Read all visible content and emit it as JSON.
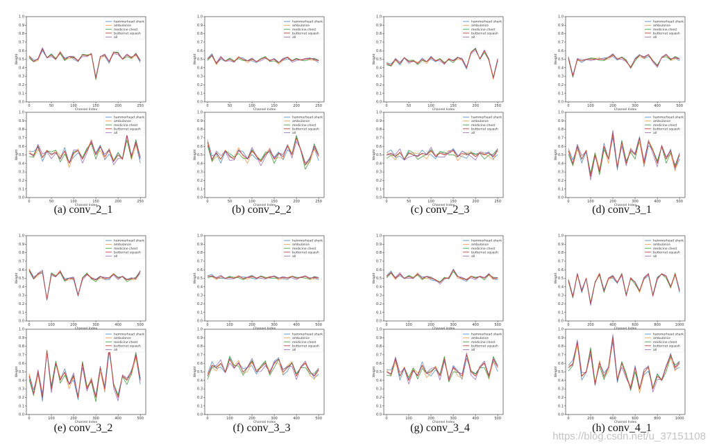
{
  "legend": [
    "hammerhead shark",
    "ambulance",
    "medicine chest",
    "butternut squash",
    "all"
  ],
  "series_colors": [
    "#4f8fc9",
    "#f0a050",
    "#3fa03f",
    "#c83c3c",
    "#9a70c0"
  ],
  "axis": {
    "xlabel": "Channel Index",
    "ylabel": "Weight",
    "yticks": [
      "0.0",
      "0.1",
      "0.2",
      "0.3",
      "0.4",
      "0.5",
      "0.6",
      "0.7",
      "0.8",
      "0.9",
      "1.0"
    ],
    "ylim": [
      0,
      1
    ]
  },
  "panels": [
    {
      "caption": "(a) conv_2_1",
      "xticks": [
        "0",
        "50",
        "100",
        "150",
        "200",
        "250"
      ],
      "xmax": 256
    },
    {
      "caption": "(b) conv_2_2",
      "xticks": [
        "0",
        "50",
        "100",
        "150",
        "200",
        "250"
      ],
      "xmax": 256
    },
    {
      "caption": "(c) conv_2_3",
      "xticks": [
        "0",
        "50",
        "100",
        "150",
        "200",
        "250"
      ],
      "xmax": 256
    },
    {
      "caption": "(d) conv_3_1",
      "xticks": [
        "0",
        "100",
        "200",
        "300",
        "400",
        "500"
      ],
      "xmax": 512
    },
    {
      "caption": "(e) conv_3_2",
      "xticks": [
        "0",
        "100",
        "200",
        "300",
        "400",
        "500"
      ],
      "xmax": 512
    },
    {
      "caption": "(f) conv_3_3",
      "xticks": [
        "0",
        "100",
        "200",
        "300",
        "400",
        "500"
      ],
      "xmax": 512
    },
    {
      "caption": "(g) conv_3_4",
      "xticks": [
        "0",
        "100",
        "200",
        "300",
        "400",
        "500"
      ],
      "xmax": 512
    },
    {
      "caption": "(h) conv_4_1",
      "xticks": [
        "0",
        "200",
        "400",
        "600",
        "800",
        "1000"
      ],
      "xmax": 1024
    }
  ],
  "chart_data": [
    {
      "type": "line",
      "panel": "a",
      "subplot": "top",
      "x": [
        0,
        10,
        20,
        30,
        40,
        50,
        60,
        70,
        80,
        90,
        100,
        110,
        120,
        130,
        140,
        150,
        160,
        170,
        180,
        190,
        200,
        210,
        220,
        230,
        240,
        250
      ],
      "series": [
        {
          "name": "all",
          "values": [
            0.53,
            0.48,
            0.5,
            0.62,
            0.52,
            0.55,
            0.5,
            0.58,
            0.5,
            0.53,
            0.52,
            0.48,
            0.55,
            0.54,
            0.56,
            0.28,
            0.53,
            0.55,
            0.47,
            0.58,
            0.57,
            0.5,
            0.55,
            0.52,
            0.56,
            0.48
          ]
        }
      ]
    },
    {
      "type": "line",
      "panel": "a",
      "subplot": "bottom",
      "x": [
        0,
        10,
        20,
        30,
        40,
        50,
        60,
        70,
        80,
        90,
        100,
        110,
        120,
        130,
        140,
        150,
        160,
        170,
        180,
        190,
        200,
        210,
        220,
        230,
        240,
        250
      ],
      "series": [
        {
          "name": "all",
          "values": [
            0.52,
            0.5,
            0.6,
            0.47,
            0.55,
            0.5,
            0.53,
            0.45,
            0.55,
            0.4,
            0.52,
            0.55,
            0.45,
            0.55,
            0.65,
            0.5,
            0.6,
            0.48,
            0.55,
            0.42,
            0.5,
            0.45,
            0.72,
            0.48,
            0.65,
            0.45
          ]
        }
      ]
    },
    {
      "type": "line",
      "panel": "b",
      "subplot": "top",
      "x": [
        0,
        10,
        20,
        30,
        40,
        50,
        60,
        70,
        80,
        90,
        100,
        110,
        120,
        130,
        140,
        150,
        160,
        170,
        180,
        190,
        200,
        210,
        220,
        230,
        240,
        250
      ],
      "series": [
        {
          "name": "all",
          "values": [
            0.5,
            0.55,
            0.45,
            0.52,
            0.48,
            0.5,
            0.47,
            0.52,
            0.5,
            0.48,
            0.5,
            0.47,
            0.5,
            0.52,
            0.48,
            0.5,
            0.46,
            0.5,
            0.52,
            0.48,
            0.5,
            0.49,
            0.5,
            0.51,
            0.5,
            0.48
          ]
        }
      ]
    },
    {
      "type": "line",
      "panel": "b",
      "subplot": "bottom",
      "x": [
        0,
        10,
        20,
        30,
        40,
        50,
        60,
        70,
        80,
        90,
        100,
        110,
        120,
        130,
        140,
        150,
        160,
        170,
        180,
        190,
        200,
        210,
        220,
        230,
        240,
        250
      ],
      "series": [
        {
          "name": "all",
          "values": [
            0.65,
            0.45,
            0.52,
            0.45,
            0.55,
            0.48,
            0.45,
            0.55,
            0.5,
            0.45,
            0.55,
            0.48,
            0.42,
            0.5,
            0.55,
            0.45,
            0.52,
            0.48,
            0.6,
            0.5,
            0.7,
            0.55,
            0.38,
            0.45,
            0.6,
            0.48
          ]
        }
      ]
    },
    {
      "type": "line",
      "panel": "c",
      "subplot": "top",
      "x": [
        0,
        10,
        20,
        30,
        40,
        50,
        60,
        70,
        80,
        90,
        100,
        110,
        120,
        130,
        140,
        150,
        160,
        170,
        180,
        190,
        200,
        210,
        220,
        230,
        240,
        250
      ],
      "series": [
        {
          "name": "all",
          "values": [
            0.45,
            0.43,
            0.5,
            0.45,
            0.52,
            0.47,
            0.48,
            0.45,
            0.5,
            0.47,
            0.52,
            0.48,
            0.5,
            0.45,
            0.5,
            0.48,
            0.52,
            0.5,
            0.4,
            0.58,
            0.62,
            0.5,
            0.6,
            0.5,
            0.28,
            0.5
          ]
        }
      ]
    },
    {
      "type": "line",
      "panel": "c",
      "subplot": "bottom",
      "x": [
        0,
        10,
        20,
        30,
        40,
        50,
        60,
        70,
        80,
        90,
        100,
        110,
        120,
        130,
        140,
        150,
        160,
        170,
        180,
        190,
        200,
        210,
        220,
        230,
        240,
        250
      ],
      "series": [
        {
          "name": "all",
          "values": [
            0.5,
            0.52,
            0.48,
            0.53,
            0.45,
            0.52,
            0.5,
            0.48,
            0.52,
            0.5,
            0.55,
            0.48,
            0.52,
            0.5,
            0.52,
            0.55,
            0.48,
            0.52,
            0.5,
            0.52,
            0.48,
            0.52,
            0.5,
            0.52,
            0.48,
            0.55
          ]
        }
      ]
    },
    {
      "type": "line",
      "panel": "d",
      "subplot": "top",
      "x": [
        0,
        20,
        40,
        60,
        80,
        100,
        120,
        140,
        160,
        180,
        200,
        220,
        240,
        260,
        280,
        300,
        320,
        340,
        360,
        380,
        400,
        420,
        440,
        460,
        480,
        500
      ],
      "series": [
        {
          "name": "all",
          "values": [
            0.52,
            0.3,
            0.5,
            0.48,
            0.5,
            0.5,
            0.5,
            0.5,
            0.5,
            0.52,
            0.55,
            0.5,
            0.52,
            0.48,
            0.4,
            0.5,
            0.55,
            0.52,
            0.55,
            0.48,
            0.42,
            0.52,
            0.55,
            0.5,
            0.52,
            0.5
          ]
        }
      ]
    },
    {
      "type": "line",
      "panel": "d",
      "subplot": "bottom",
      "x": [
        0,
        20,
        40,
        60,
        80,
        100,
        120,
        140,
        160,
        180,
        200,
        220,
        240,
        260,
        280,
        300,
        320,
        340,
        360,
        380,
        400,
        420,
        440,
        460,
        480,
        500
      ],
      "series": [
        {
          "name": "all",
          "values": [
            0.55,
            0.4,
            0.6,
            0.45,
            0.55,
            0.25,
            0.5,
            0.3,
            0.6,
            0.45,
            0.75,
            0.35,
            0.65,
            0.4,
            0.55,
            0.5,
            0.7,
            0.4,
            0.65,
            0.55,
            0.4,
            0.6,
            0.45,
            0.55,
            0.35,
            0.5
          ]
        }
      ]
    },
    {
      "type": "line",
      "panel": "e",
      "subplot": "top",
      "x": [
        0,
        20,
        40,
        60,
        80,
        100,
        120,
        140,
        160,
        180,
        200,
        220,
        240,
        260,
        280,
        300,
        320,
        340,
        360,
        380,
        400,
        420,
        440,
        460,
        480,
        500
      ],
      "series": [
        {
          "name": "all",
          "values": [
            0.6,
            0.5,
            0.55,
            0.58,
            0.25,
            0.55,
            0.52,
            0.58,
            0.48,
            0.5,
            0.5,
            0.3,
            0.5,
            0.55,
            0.5,
            0.48,
            0.52,
            0.5,
            0.5,
            0.55,
            0.5,
            0.52,
            0.48,
            0.5,
            0.5,
            0.58
          ]
        }
      ]
    },
    {
      "type": "line",
      "panel": "e",
      "subplot": "bottom",
      "x": [
        0,
        20,
        40,
        60,
        80,
        100,
        120,
        140,
        160,
        180,
        200,
        220,
        240,
        260,
        280,
        300,
        320,
        340,
        360,
        380,
        400,
        420,
        440,
        460,
        480,
        500
      ],
      "series": [
        {
          "name": "all",
          "values": [
            0.45,
            0.25,
            0.5,
            0.2,
            0.75,
            0.3,
            0.6,
            0.4,
            0.5,
            0.35,
            0.45,
            0.2,
            0.6,
            0.3,
            0.4,
            0.2,
            0.55,
            0.3,
            0.78,
            0.35,
            0.2,
            0.45,
            0.4,
            0.5,
            0.7,
            0.4
          ]
        }
      ]
    },
    {
      "type": "line",
      "panel": "f",
      "subplot": "top",
      "x": [
        0,
        20,
        40,
        60,
        80,
        100,
        120,
        140,
        160,
        180,
        200,
        220,
        240,
        260,
        280,
        300,
        320,
        340,
        360,
        380,
        400,
        420,
        440,
        460,
        480,
        500
      ],
      "series": [
        {
          "name": "all",
          "values": [
            0.52,
            0.53,
            0.5,
            0.52,
            0.5,
            0.51,
            0.5,
            0.52,
            0.5,
            0.51,
            0.52,
            0.5,
            0.52,
            0.5,
            0.51,
            0.52,
            0.5,
            0.51,
            0.5,
            0.52,
            0.5,
            0.51,
            0.52,
            0.5,
            0.51,
            0.5
          ]
        }
      ]
    },
    {
      "type": "line",
      "panel": "f",
      "subplot": "bottom",
      "x": [
        0,
        20,
        40,
        60,
        80,
        100,
        120,
        140,
        160,
        180,
        200,
        220,
        240,
        260,
        280,
        300,
        320,
        340,
        360,
        380,
        400,
        420,
        440,
        460,
        480,
        500
      ],
      "series": [
        {
          "name": "all",
          "values": [
            0.45,
            0.58,
            0.55,
            0.6,
            0.5,
            0.65,
            0.55,
            0.6,
            0.5,
            0.55,
            0.62,
            0.5,
            0.55,
            0.6,
            0.48,
            0.6,
            0.65,
            0.5,
            0.55,
            0.6,
            0.45,
            0.55,
            0.6,
            0.5,
            0.45,
            0.52
          ]
        }
      ]
    },
    {
      "type": "line",
      "panel": "g",
      "subplot": "top",
      "x": [
        0,
        20,
        40,
        60,
        80,
        100,
        120,
        140,
        160,
        180,
        200,
        220,
        240,
        260,
        280,
        300,
        320,
        340,
        360,
        380,
        400,
        420,
        440,
        460,
        480,
        500
      ],
      "series": [
        {
          "name": "all",
          "values": [
            0.52,
            0.57,
            0.5,
            0.55,
            0.5,
            0.52,
            0.5,
            0.55,
            0.5,
            0.52,
            0.5,
            0.48,
            0.45,
            0.5,
            0.5,
            0.6,
            0.52,
            0.5,
            0.48,
            0.52,
            0.5,
            0.52,
            0.5,
            0.55,
            0.5,
            0.5
          ]
        }
      ]
    },
    {
      "type": "line",
      "panel": "g",
      "subplot": "bottom",
      "x": [
        0,
        20,
        40,
        60,
        80,
        100,
        120,
        140,
        160,
        180,
        200,
        220,
        240,
        260,
        280,
        300,
        320,
        340,
        360,
        380,
        400,
        420,
        440,
        460,
        480,
        500
      ],
      "series": [
        {
          "name": "all",
          "values": [
            0.5,
            0.48,
            0.65,
            0.45,
            0.55,
            0.4,
            0.52,
            0.45,
            0.58,
            0.48,
            0.5,
            0.55,
            0.45,
            0.65,
            0.4,
            0.55,
            0.5,
            0.45,
            0.7,
            0.5,
            0.45,
            0.55,
            0.6,
            0.45,
            0.65,
            0.55
          ]
        }
      ]
    },
    {
      "type": "line",
      "panel": "h",
      "subplot": "top",
      "x": [
        0,
        40,
        80,
        120,
        160,
        200,
        240,
        280,
        320,
        360,
        400,
        440,
        480,
        520,
        560,
        600,
        640,
        680,
        720,
        760,
        800,
        840,
        880,
        920,
        960,
        1000
      ],
      "series": [
        {
          "name": "all",
          "values": [
            0.48,
            0.28,
            0.55,
            0.35,
            0.5,
            0.2,
            0.45,
            0.55,
            0.35,
            0.5,
            0.52,
            0.45,
            0.55,
            0.3,
            0.5,
            0.45,
            0.35,
            0.5,
            0.55,
            0.3,
            0.5,
            0.55,
            0.52,
            0.4,
            0.55,
            0.35
          ]
        }
      ]
    },
    {
      "type": "line",
      "panel": "h",
      "subplot": "bottom",
      "x": [
        0,
        40,
        80,
        120,
        160,
        200,
        240,
        280,
        320,
        360,
        400,
        440,
        480,
        520,
        560,
        600,
        640,
        680,
        720,
        760,
        800,
        840,
        880,
        920,
        960,
        1000
      ],
      "series": [
        {
          "name": "all",
          "values": [
            0.55,
            0.6,
            0.85,
            0.45,
            0.5,
            0.75,
            0.35,
            0.6,
            0.45,
            0.55,
            0.9,
            0.4,
            0.6,
            0.45,
            0.3,
            0.55,
            0.3,
            0.5,
            0.55,
            0.3,
            0.45,
            0.4,
            0.55,
            0.7,
            0.55,
            0.6
          ]
        }
      ]
    }
  ],
  "watermark": "https://blog.csdn.net/u_37151108"
}
